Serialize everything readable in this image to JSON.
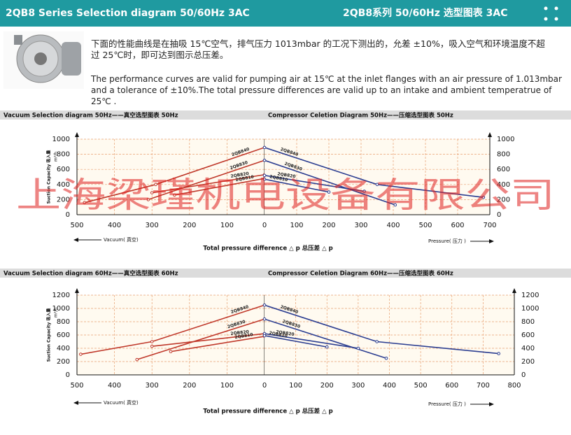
{
  "header": {
    "title_en": "2QB8 Series Selection diagram 50/60Hz 3AC",
    "title_cn": "2QB8系列 50/60Hz 选型图表 3AC"
  },
  "description": {
    "cn": "下面的性能曲线是在抽吸 15℃空气，排气压力 1013mbar 的工况下测出的，允差 ±10%，吸入空气和环境温度不超过 25℃时，即可达到图示总压差。",
    "en": "The performance curves are valid for pumping air at 15℃ at the inlet flanges with an air pressure of 1.013mbar and a tolerance of ±10%.The total pressure differences are valid up to an intake and ambient temperatrue of 25℃ ."
  },
  "watermark": "上海梁瑾机电设备有限公司",
  "sections": [
    {
      "y_label": "Suction Capacity 吸入量",
      "y_unit": "m³/h",
      "left_direction": "Vacuum( 真空)",
      "x_label": "Total pressure difference △ p 总压差 △ p",
      "right_direction": "Pressure( 压力 )"
    },
    {
      "y_label": "Suction Capacity 吸入量",
      "y_unit": "m³/h",
      "left_direction": "Vacuum( 真空)",
      "x_label": "Total pressure difference △ p 总压差 △ p",
      "right_direction": "Pressure( 压力 )"
    }
  ],
  "chart_data": [
    {
      "type": "line",
      "title": "Vacuum Selection diagram 50Hz——真空选型图表 50Hz",
      "xlim": [
        500,
        0
      ],
      "ylim": [
        0,
        1000
      ],
      "xticks": [
        500,
        400,
        300,
        200,
        100,
        0
      ],
      "yticks": [
        0,
        200,
        400,
        600,
        800,
        1000
      ],
      "grid": true,
      "series": [
        {
          "name": "2QB840",
          "color": "#c0392b",
          "x": [
            0,
            290,
            480
          ],
          "values": [
            890,
            400,
            160
          ]
        },
        {
          "name": "2QB830",
          "color": "#c0392b",
          "x": [
            0,
            310
          ],
          "values": [
            720,
            200
          ]
        },
        {
          "name": "2QB820",
          "color": "#c0392b",
          "x": [
            0,
            300
          ],
          "values": [
            530,
            290
          ]
        },
        {
          "name": "2QB810",
          "color": "#c0392b",
          "x": [
            0,
            240
          ],
          "values": [
            480,
            260
          ]
        }
      ]
    },
    {
      "type": "line",
      "title": "Compressor Celetion Diagram 50Hz——压缩选型图表 50Hz",
      "xlim": [
        0,
        700
      ],
      "ylim": [
        0,
        1000
      ],
      "xticks": [
        100,
        200,
        300,
        400,
        500,
        600,
        700
      ],
      "yticks": [
        0,
        200,
        400,
        600,
        800,
        1000
      ],
      "grid": true,
      "series": [
        {
          "name": "2QB840",
          "color": "#2c3e91",
          "x": [
            0,
            350,
            680
          ],
          "values": [
            890,
            400,
            230
          ]
        },
        {
          "name": "2QB830",
          "color": "#2c3e91",
          "x": [
            0,
            406
          ],
          "values": [
            720,
            130
          ]
        },
        {
          "name": "2QB820",
          "color": "#2c3e91",
          "x": [
            0,
            310
          ],
          "values": [
            520,
            310
          ]
        },
        {
          "name": "2QB810",
          "color": "#2c3e91",
          "x": [
            0,
            200
          ],
          "values": [
            470,
            300
          ]
        }
      ]
    },
    {
      "type": "line",
      "title": "Vacuum Selection diagram 60Hz——真空选型图表 60Hz",
      "xlim": [
        500,
        0
      ],
      "ylim": [
        0,
        1200
      ],
      "xticks": [
        500,
        400,
        300,
        200,
        100,
        0
      ],
      "yticks": [
        0,
        200,
        400,
        600,
        800,
        1000,
        1200
      ],
      "grid": true,
      "series": [
        {
          "name": "2QB840",
          "color": "#c0392b",
          "x": [
            0,
            300,
            490
          ],
          "values": [
            1050,
            500,
            310
          ]
        },
        {
          "name": "2QB830",
          "color": "#c0392b",
          "x": [
            0,
            340
          ],
          "values": [
            840,
            230
          ]
        },
        {
          "name": "2QB820",
          "color": "#c0392b",
          "x": [
            0,
            300
          ],
          "values": [
            620,
            430
          ]
        },
        {
          "name": "2QB810",
          "color": "#c0392b",
          "x": [
            0,
            250
          ],
          "values": [
            580,
            350
          ]
        }
      ]
    },
    {
      "type": "line",
      "title": "Compressor Celetion Diagram 60Hz——压缩选型图表 60Hz",
      "xlim": [
        0,
        800
      ],
      "ylim": [
        0,
        1200
      ],
      "xticks": [
        100,
        200,
        300,
        400,
        500,
        600,
        700,
        800
      ],
      "yticks": [
        0,
        200,
        400,
        600,
        800,
        1000,
        1200
      ],
      "grid": true,
      "series": [
        {
          "name": "2QB840",
          "color": "#2c3e91",
          "x": [
            0,
            360,
            750
          ],
          "values": [
            1050,
            500,
            320
          ]
        },
        {
          "name": "2QB830",
          "color": "#2c3e91",
          "x": [
            0,
            390
          ],
          "values": [
            840,
            250
          ]
        },
        {
          "name": "2QB820",
          "color": "#2c3e91",
          "x": [
            0,
            300
          ],
          "values": [
            620,
            400
          ]
        },
        {
          "name": "2QB810",
          "color": "#2c3e91",
          "x": [
            0,
            200
          ],
          "values": [
            590,
            420
          ]
        }
      ]
    }
  ]
}
